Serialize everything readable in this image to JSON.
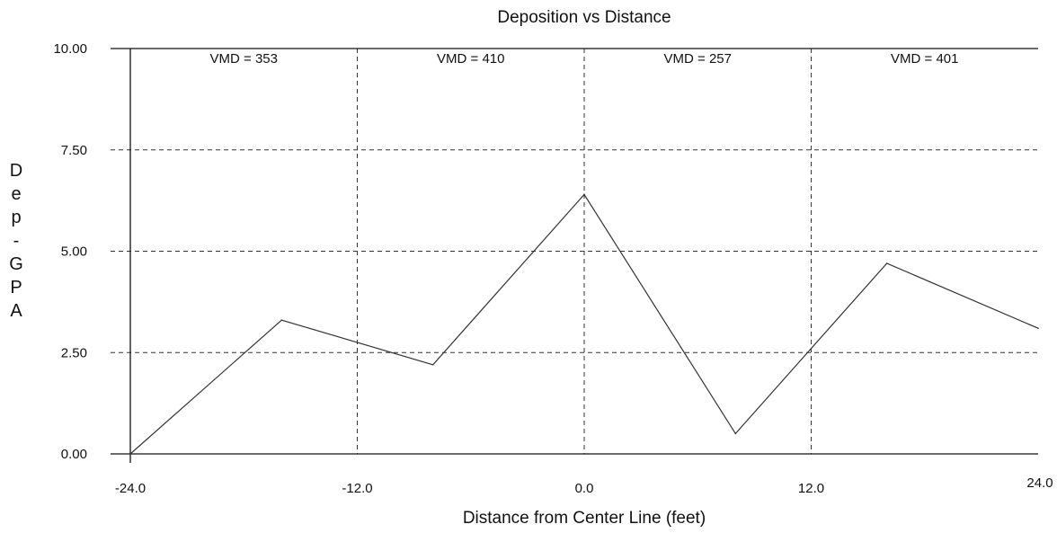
{
  "chart_data": {
    "type": "line",
    "title": "Deposition vs Distance",
    "xlabel": "Distance from Center Line (feet)",
    "ylabel": "Dep - GPA",
    "ylabel_chars": [
      "D",
      "e",
      "p",
      "-",
      "G",
      "P",
      "A"
    ],
    "xlim": [
      -24.0,
      24.0
    ],
    "ylim": [
      0.0,
      10.0
    ],
    "x_ticks": [
      "-24.0",
      "-12.0",
      "0.0",
      "12.0",
      "24.0"
    ],
    "y_ticks": [
      "0.00",
      "2.50",
      "5.00",
      "7.50",
      "10.00"
    ],
    "grid": true,
    "series": [
      {
        "x": [
          -24,
          -16,
          -8,
          0,
          8,
          16,
          24
        ],
        "y": [
          0.0,
          3.3,
          2.2,
          6.4,
          0.5,
          4.7,
          3.1
        ]
      }
    ],
    "annotations": [
      {
        "text": "VMD = 353",
        "x": -18
      },
      {
        "text": "VMD = 410",
        "x": -6
      },
      {
        "text": "VMD = 257",
        "x": 6
      },
      {
        "text": "VMD = 401",
        "x": 18
      }
    ],
    "colors": {
      "line": "#333333",
      "axis": "#111111",
      "grid": "#333333"
    }
  }
}
